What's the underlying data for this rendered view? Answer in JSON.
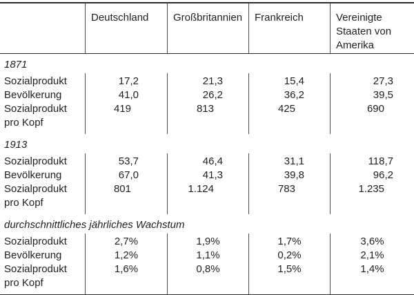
{
  "colors": {
    "text": "#1f1f1f",
    "rule_heavy": "#2b2b2b",
    "rule_light": "#4d4d4d",
    "background": "#ffffff"
  },
  "table": {
    "corner": "",
    "columns": [
      "Deutschland",
      "Großbritannien",
      "Frankreich",
      "Vereinigte Staaten von Amerika"
    ],
    "sections": [
      {
        "label": "1871",
        "rows": [
          {
            "label": "Sozialprodukt",
            "values": [
              "17,2",
              "21,3",
              "15,4",
              "27,3"
            ]
          },
          {
            "label": "Bevölkerung",
            "values": [
              "41,0",
              "26,2",
              "36,2",
              "39,5"
            ]
          },
          {
            "label": "Sozialprodukt pro Kopf",
            "values": [
              "419",
              "813",
              "425",
              "690"
            ]
          }
        ]
      },
      {
        "label": "1913",
        "rows": [
          {
            "label": "Sozialprodukt",
            "values": [
              "53,7",
              "46,4",
              "31,1",
              "118,7"
            ]
          },
          {
            "label": "Bevölkerung",
            "values": [
              "67,0",
              "41,3",
              "39,8",
              "96,2"
            ]
          },
          {
            "label": "Sozialprodukt pro Kopf",
            "values": [
              "801",
              "1.124",
              "783",
              "1.235"
            ]
          }
        ]
      },
      {
        "label": "durchschnittliches jährliches Wachstum",
        "rows": [
          {
            "label": "Sozialprodukt",
            "values": [
              "2,7%",
              "1,9%",
              "1,7%",
              "3,6%"
            ]
          },
          {
            "label": "Bevölkerung",
            "values": [
              "1,2%",
              "1,1%",
              "0,2%",
              "2,1%"
            ]
          },
          {
            "label": "Sozialprodukt pro Kopf",
            "values": [
              "1,6%",
              "0,8%",
              "1,5%",
              "1,4%"
            ]
          }
        ]
      }
    ]
  }
}
